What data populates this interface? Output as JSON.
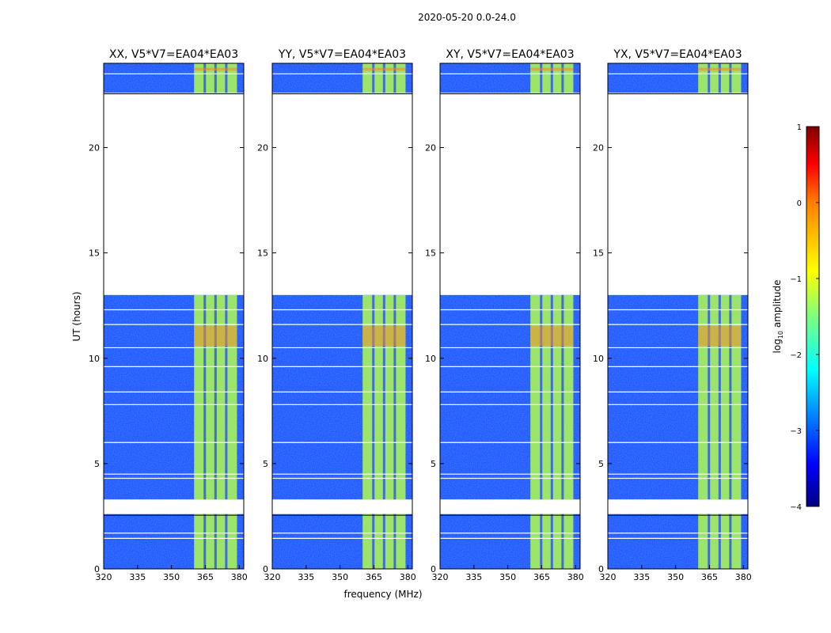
{
  "figure": {
    "suptitle": "2020-05-20 0.0-24.0",
    "xlabel": "frequency (MHz)",
    "ylabel": "UT (hours)"
  },
  "colors": {
    "background": "#ffffff",
    "low": "#1a3cff",
    "mid": "#a8f25a",
    "high": "#f08c28",
    "frame": "#000000"
  },
  "chart_data": {
    "type": "heatmap",
    "x_ticks": [
      "320",
      "335",
      "350",
      "365",
      "380"
    ],
    "y_ticks": [
      "0",
      "5",
      "10",
      "15",
      "20"
    ],
    "xlim": [
      320,
      382
    ],
    "ylim": [
      0,
      24
    ],
    "flagged_gap_hours": [
      [
        2.6,
        3.3
      ],
      [
        13.0,
        22.6
      ]
    ],
    "bright_band_mhz": [
      360,
      379
    ],
    "panels": [
      {
        "title": "XX, V5*V7=EA04*EA03"
      },
      {
        "title": "YY, V5*V7=EA04*EA03"
      },
      {
        "title": "XY, V5*V7=EA04*EA03"
      },
      {
        "title": "YX, V5*V7=EA04*EA03"
      }
    ],
    "colorbar": {
      "label_main": "log",
      "label_sub": "10",
      "label_rest": " amplitude",
      "range": [
        -4,
        1
      ],
      "ticks": [
        "1",
        "0",
        "−1",
        "−2",
        "−3",
        "−4"
      ]
    }
  }
}
